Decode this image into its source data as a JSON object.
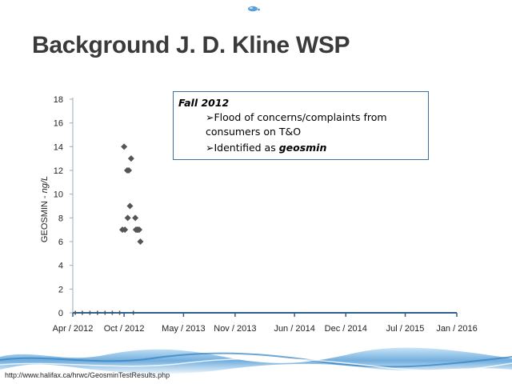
{
  "slide": {
    "title": "Background J. D. Kline WSP",
    "source_url": "http://www.halifax.ca/hrwc/GeosminTestResults.php"
  },
  "callout": {
    "header": "Fall 2012",
    "line1": "➢Flood of concerns/complaints from",
    "line2": "consumers on T&O",
    "line3_prefix": "➢Identified as ",
    "line3_emph": "geosmin"
  },
  "colors": {
    "title": "#3a3a3a",
    "marker": "#555555",
    "axis": "#2f5f8f",
    "callout_border": "#3f6f9f",
    "water": "#5aa0d8"
  },
  "chart_data": {
    "type": "scatter",
    "ylabel_prefix": "GEOSMIN - ",
    "ylabel_unit": "ng/L",
    "ylim": [
      0,
      18
    ],
    "yticks": [
      0,
      2,
      4,
      6,
      8,
      10,
      12,
      14,
      16,
      18
    ],
    "xlim": [
      "2012-04-01",
      "2016-01-01"
    ],
    "xticks": [
      {
        "date": "2012-04-01",
        "label": "Apr / 2012"
      },
      {
        "date": "2012-10-01",
        "label": "Oct / 2012"
      },
      {
        "date": "2013-05-01",
        "label": "May / 2013"
      },
      {
        "date": "2013-11-01",
        "label": "Nov / 2013"
      },
      {
        "date": "2014-06-01",
        "label": "Jun / 2014"
      },
      {
        "date": "2014-12-01",
        "label": "Dec / 2014"
      },
      {
        "date": "2015-07-01",
        "label": "Jul / 2015"
      },
      {
        "date": "2016-01-01",
        "label": "Jan / 2016"
      }
    ],
    "grid": false,
    "points": [
      {
        "x": "2012-04-10",
        "y": 0
      },
      {
        "x": "2012-05-05",
        "y": 0
      },
      {
        "x": "2012-06-01",
        "y": 0
      },
      {
        "x": "2012-06-28",
        "y": 0
      },
      {
        "x": "2012-07-25",
        "y": 0
      },
      {
        "x": "2012-08-20",
        "y": 0
      },
      {
        "x": "2012-09-15",
        "y": 0
      },
      {
        "x": "2012-09-25",
        "y": 7
      },
      {
        "x": "2012-10-01",
        "y": 14
      },
      {
        "x": "2012-10-04",
        "y": 7
      },
      {
        "x": "2012-10-12",
        "y": 12
      },
      {
        "x": "2012-10-14",
        "y": 8
      },
      {
        "x": "2012-10-18",
        "y": 12
      },
      {
        "x": "2012-10-22",
        "y": 9
      },
      {
        "x": "2012-10-26",
        "y": 13
      },
      {
        "x": "2012-11-03",
        "y": 0
      },
      {
        "x": "2012-11-10",
        "y": 8
      },
      {
        "x": "2012-11-12",
        "y": 7
      },
      {
        "x": "2012-11-16",
        "y": 7
      },
      {
        "x": "2012-11-20",
        "y": 7
      },
      {
        "x": "2012-11-24",
        "y": 7
      },
      {
        "x": "2012-11-28",
        "y": 6
      }
    ]
  }
}
